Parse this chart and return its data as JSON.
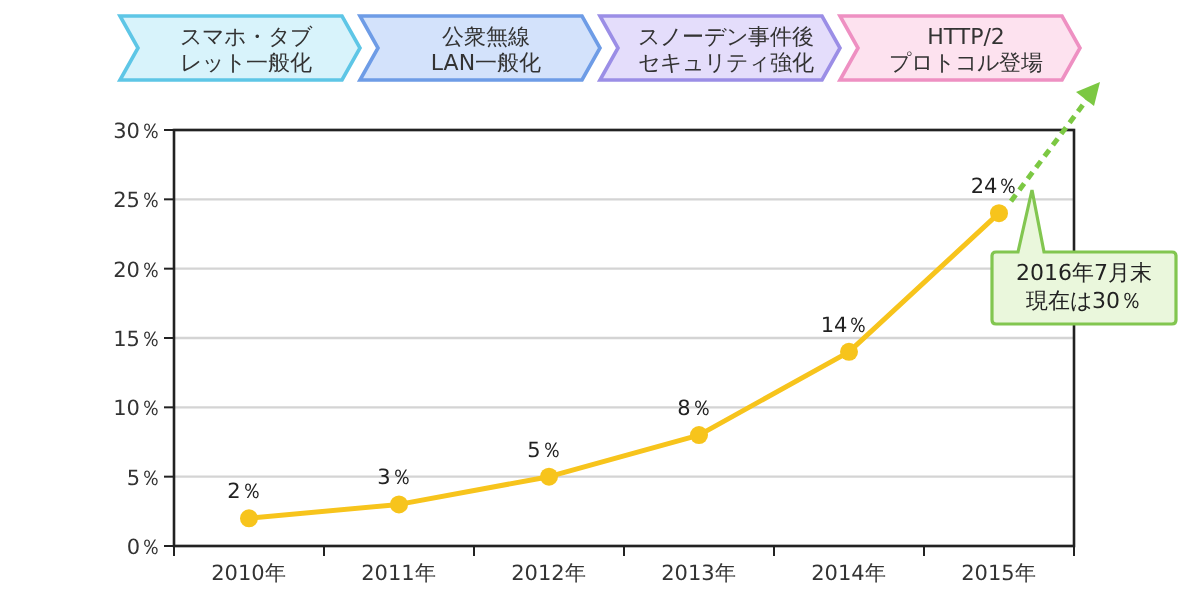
{
  "chart_data": {
    "type": "line",
    "categories": [
      "2010年",
      "2011年",
      "2012年",
      "2013年",
      "2014年",
      "2015年"
    ],
    "series": [
      {
        "color": "#f7c41c",
        "values": [
          2,
          3,
          5,
          8,
          14,
          24
        ],
        "value_labels": [
          "2％",
          "3％",
          "5％",
          "8％",
          "14％",
          "24％"
        ]
      }
    ],
    "ylim": [
      0,
      30
    ],
    "yticks": [
      {
        "value": 0,
        "label": "0％"
      },
      {
        "value": 5,
        "label": "5％"
      },
      {
        "value": 10,
        "label": "10％"
      },
      {
        "value": 15,
        "label": "15％"
      },
      {
        "value": 20,
        "label": "20％"
      },
      {
        "value": 25,
        "label": "25％"
      },
      {
        "value": 30,
        "label": "30％"
      }
    ],
    "grid": "y",
    "marker": "circle",
    "line_style": "solid",
    "annotations": [
      "スマホ・タブ",
      "レット一般化",
      "公衆無線",
      "LAN一般化",
      "スノーデン事件後",
      "セキュリティ強化",
      "HTTP/2",
      "プロトコル登場",
      "2016年7月末",
      "現在は30％"
    ]
  }
}
